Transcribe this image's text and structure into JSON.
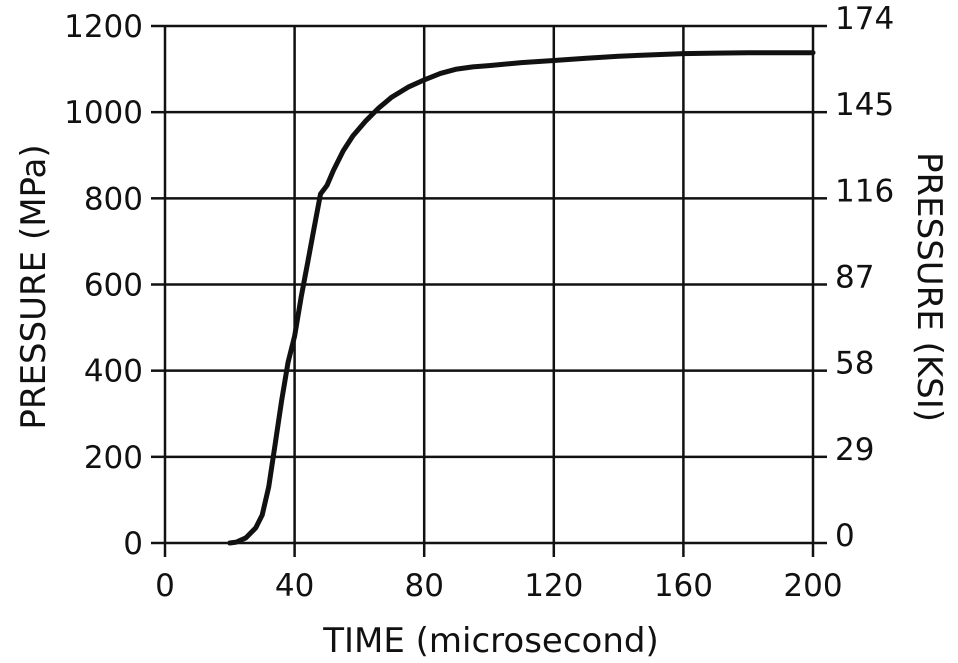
{
  "chart_data": {
    "type": "line",
    "xlabel": "TIME (microsecond)",
    "ylabel": "PRESSURE (MPa)",
    "ylabel_right": "PRESSURE (KSI)",
    "xlim": [
      0,
      200
    ],
    "ylim": [
      0,
      1200
    ],
    "x_ticks": [
      0,
      40,
      80,
      120,
      160,
      200
    ],
    "x_tick_labels": [
      "0",
      "40",
      "80",
      "120",
      "160",
      "200"
    ],
    "y_ticks": [
      0,
      200,
      400,
      600,
      800,
      1000,
      1200
    ],
    "y_tick_labels": [
      "0",
      "200",
      "400",
      "600",
      "800",
      "1000",
      "1200"
    ],
    "y2_ticks": [
      0,
      200,
      400,
      600,
      800,
      1000,
      1200
    ],
    "y2_tick_labels": [
      "0",
      "29",
      "58",
      "87",
      "116",
      "145",
      "174"
    ],
    "grid": true,
    "series": [
      {
        "x": [
          20,
          22,
          25,
          28,
          30,
          32,
          34,
          36,
          38,
          40,
          42,
          44,
          46,
          48,
          50,
          52,
          55,
          58,
          62,
          66,
          70,
          75,
          80,
          85,
          90,
          95,
          100,
          110,
          120,
          130,
          140,
          150,
          160,
          170,
          180,
          190,
          200
        ],
        "y": [
          0,
          2,
          12,
          35,
          65,
          130,
          230,
          330,
          420,
          480,
          570,
          650,
          730,
          810,
          830,
          865,
          910,
          945,
          980,
          1010,
          1035,
          1058,
          1075,
          1090,
          1100,
          1105,
          1108,
          1115,
          1120,
          1125,
          1130,
          1133,
          1136,
          1137,
          1138,
          1138,
          1138
        ],
        "color": "#111111"
      }
    ]
  }
}
